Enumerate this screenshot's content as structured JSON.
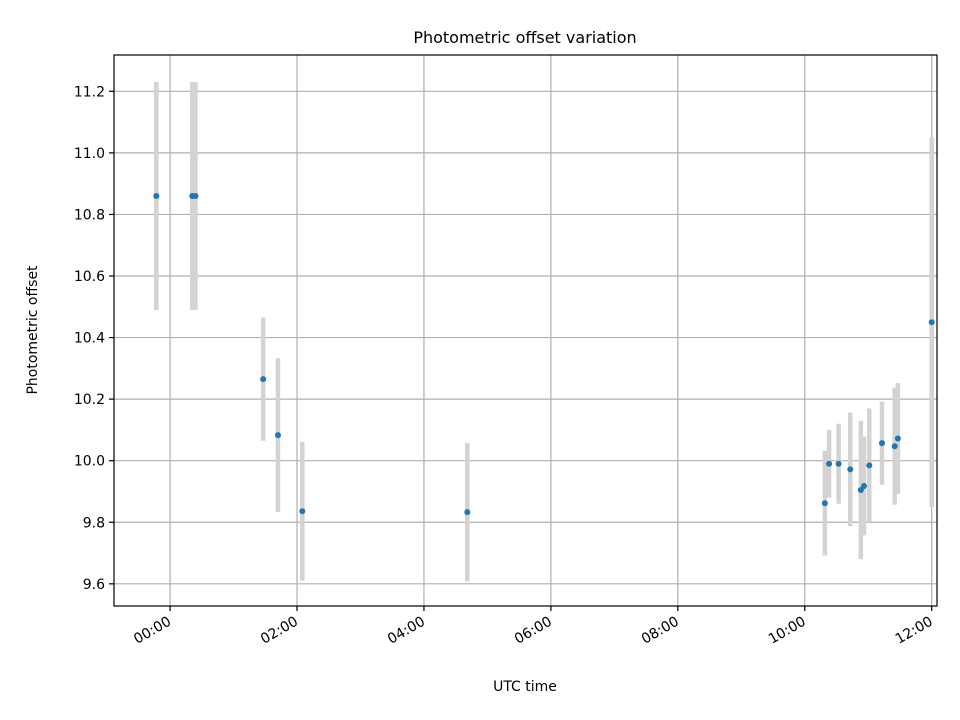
{
  "chart_data": {
    "type": "scatter",
    "title": "Photometric offset variation",
    "xlabel": "UTC time",
    "ylabel": "Photometric offset",
    "x_axis": "time",
    "xlim": [
      "2000-01-01T23:07",
      "2000-01-02T12:05"
    ],
    "ylim": [
      9.528,
      11.318
    ],
    "grid": true,
    "colors": {
      "points": "#1f77b4",
      "errorbars": "#d3d3d3",
      "grid": "#b0b0b0"
    },
    "xticks": [
      {
        "t": "2000-01-02T00:00",
        "label": "00:00"
      },
      {
        "t": "2000-01-02T02:00",
        "label": "02:00"
      },
      {
        "t": "2000-01-02T04:00",
        "label": "04:00"
      },
      {
        "t": "2000-01-02T06:00",
        "label": "06:00"
      },
      {
        "t": "2000-01-02T08:00",
        "label": "08:00"
      },
      {
        "t": "2000-01-02T10:00",
        "label": "10:00"
      },
      {
        "t": "2000-01-02T12:00",
        "label": "12:00"
      }
    ],
    "yticks": [
      9.6,
      9.8,
      10.0,
      10.2,
      10.4,
      10.6,
      10.8,
      11.0,
      11.2
    ],
    "yticklabels": [
      "9.6",
      "9.8",
      "10.0",
      "10.2",
      "10.4",
      "10.6",
      "10.8",
      "11.0",
      "11.2"
    ],
    "points": [
      {
        "t": "2000-01-01T23:47",
        "y": 10.86,
        "err": 0.37
      },
      {
        "t": "2000-01-02T00:21",
        "y": 10.86,
        "err": 0.37
      },
      {
        "t": "2000-01-02T00:24",
        "y": 10.86,
        "err": 0.37
      },
      {
        "t": "2000-01-02T01:28",
        "y": 10.265,
        "err": 0.2
      },
      {
        "t": "2000-01-02T01:42",
        "y": 10.083,
        "err": 0.25
      },
      {
        "t": "2000-01-02T02:05",
        "y": 9.836,
        "err": 0.225
      },
      {
        "t": "2000-01-02T04:41",
        "y": 9.833,
        "err": 0.225
      },
      {
        "t": "2000-01-02T10:19",
        "y": 9.862,
        "err": 0.17
      },
      {
        "t": "2000-01-02T10:23",
        "y": 9.99,
        "err": 0.11
      },
      {
        "t": "2000-01-02T10:32",
        "y": 9.99,
        "err": 0.13
      },
      {
        "t": "2000-01-02T10:43",
        "y": 9.972,
        "err": 0.185
      },
      {
        "t": "2000-01-02T10:53",
        "y": 9.905,
        "err": 0.225
      },
      {
        "t": "2000-01-02T10:56",
        "y": 9.918,
        "err": 0.16
      },
      {
        "t": "2000-01-02T11:01",
        "y": 9.985,
        "err": 0.185
      },
      {
        "t": "2000-01-02T11:13",
        "y": 10.057,
        "err": 0.135
      },
      {
        "t": "2000-01-02T11:25",
        "y": 10.047,
        "err": 0.19
      },
      {
        "t": "2000-01-02T11:28",
        "y": 10.072,
        "err": 0.18
      },
      {
        "t": "2000-01-02T12:00",
        "y": 10.45,
        "err": 0.6
      }
    ]
  }
}
